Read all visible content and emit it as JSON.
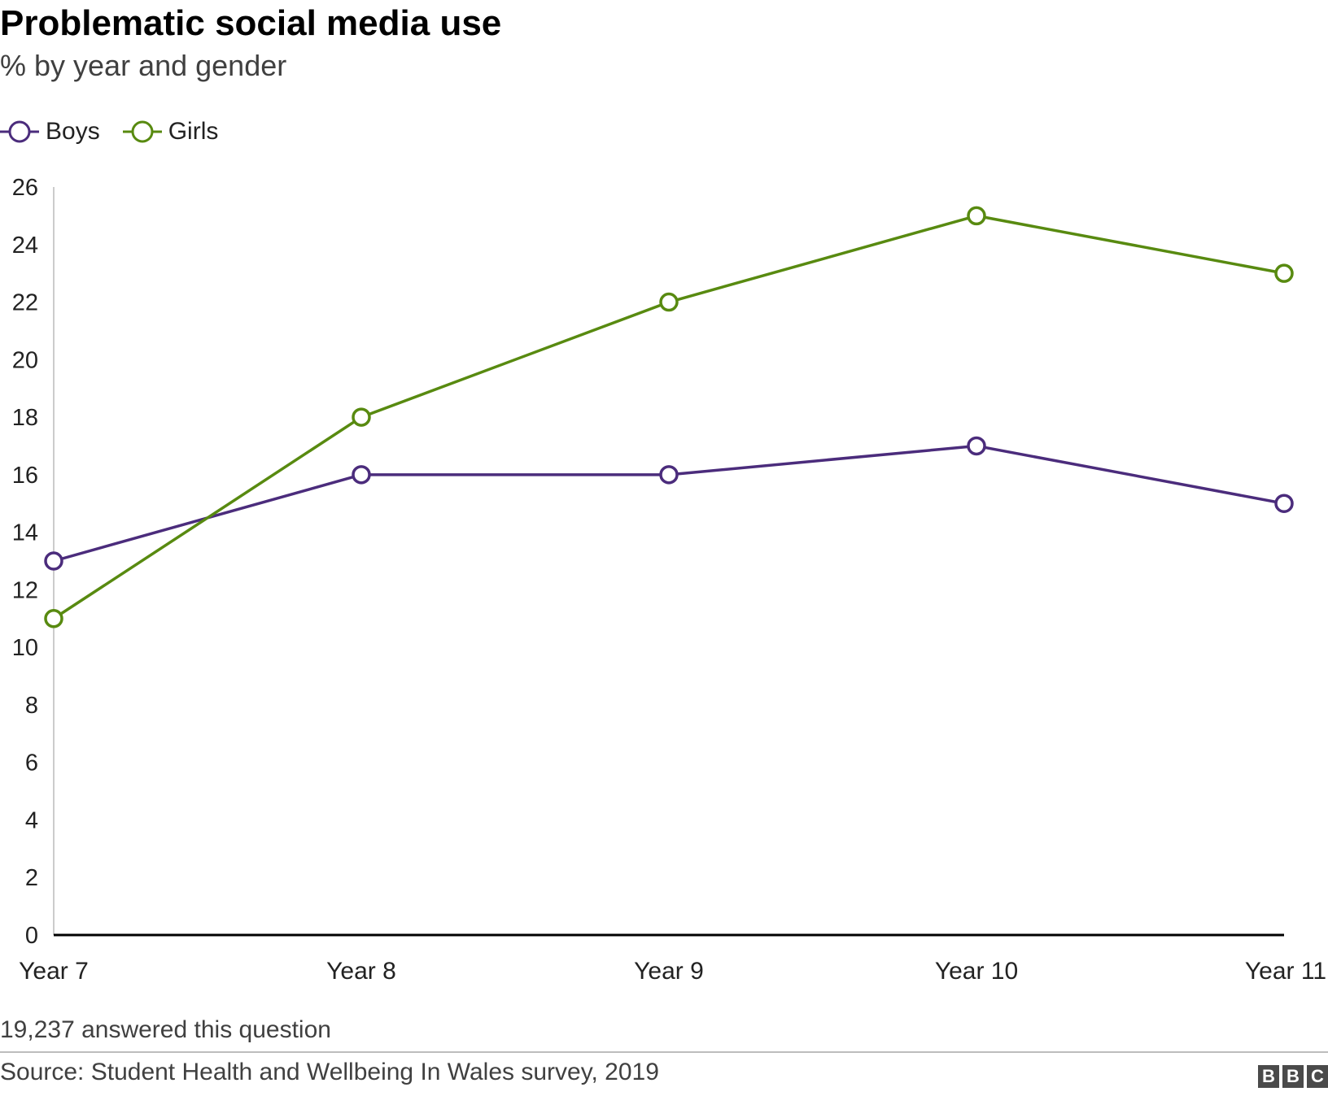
{
  "header": {
    "title": "Problematic social media use",
    "subtitle": "% by year and gender"
  },
  "footer": {
    "note": "19,237 answered this question",
    "source": "Source: Student Health and Wellbeing In Wales survey, 2019",
    "logo_letters": [
      "B",
      "B",
      "C"
    ]
  },
  "colors": {
    "boys": "#4b2c7c",
    "girls": "#588a10",
    "axis": "#000000",
    "y_axis_line": "#cccccc",
    "text": "#222222"
  },
  "chart_data": {
    "type": "line",
    "title": "Problematic social media use",
    "subtitle": "% by year and gender",
    "categories": [
      "Year 7",
      "Year 8",
      "Year 9",
      "Year 10",
      "Year 11"
    ],
    "series": [
      {
        "name": "Boys",
        "color": "#4b2c7c",
        "values": [
          13,
          16,
          16,
          17,
          15
        ]
      },
      {
        "name": "Girls",
        "color": "#588a10",
        "values": [
          11,
          18,
          22,
          25,
          23
        ]
      }
    ],
    "ylim": [
      0,
      26
    ],
    "yticks": [
      0,
      2,
      4,
      6,
      8,
      10,
      12,
      14,
      16,
      18,
      20,
      22,
      24,
      26
    ],
    "xlabel": "",
    "ylabel": "",
    "grid": false,
    "legend_position": "top-left",
    "marker": "open-circle"
  }
}
